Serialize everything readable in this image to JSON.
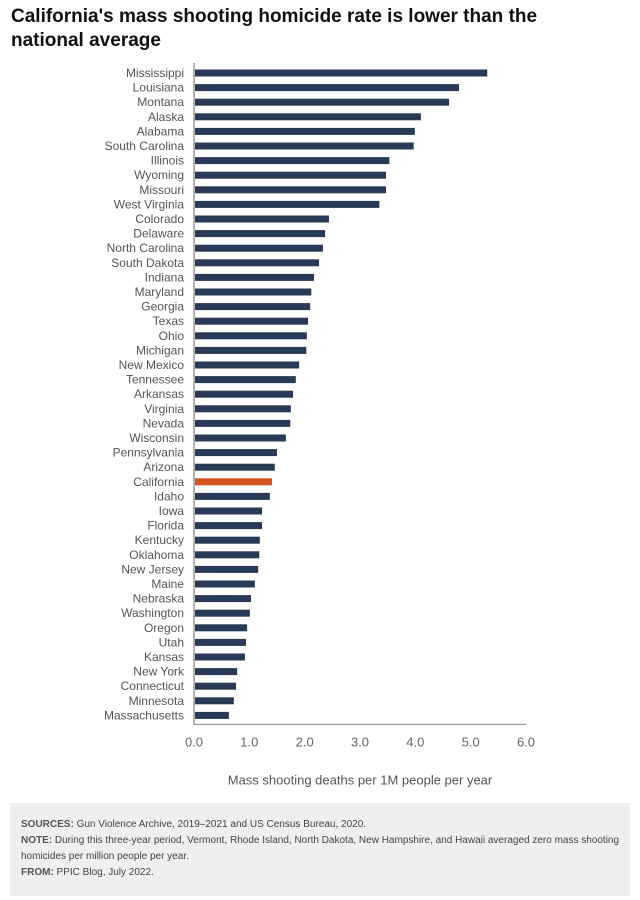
{
  "chart_data": {
    "type": "bar",
    "orientation": "horizontal",
    "title": "California's mass shooting homicide rate is lower than the national average",
    "xlabel": "Mass shooting deaths per 1M people per year",
    "ylabel": "",
    "xlim": [
      0,
      6
    ],
    "xticks": [
      0,
      1,
      2,
      3,
      4,
      5,
      6
    ],
    "xtick_labels": [
      "0.0",
      "1.0",
      "2.0",
      "3.0",
      "4.0",
      "5.0",
      "6.0"
    ],
    "grid": false,
    "highlight": "California",
    "colors": {
      "default": "#283a55",
      "highlight": "#d4551f",
      "axis": "#666666"
    },
    "categories": [
      "Mississippi",
      "Louisiana",
      "Montana",
      "Alaska",
      "Alabama",
      "South Carolina",
      "Illinois",
      "Wyoming",
      "Missouri",
      "West Virginia",
      "Colorado",
      "Delaware",
      "North Carolina",
      "South Dakota",
      "Indiana",
      "Maryland",
      "Georgia",
      "Texas",
      "Ohio",
      "Michigan",
      "New Mexico",
      "Tennessee",
      "Arkansas",
      "Virginia",
      "Nevada",
      "Wisconsin",
      "Pennsylvania",
      "Arizona",
      "California",
      "Idaho",
      "Iowa",
      "Florida",
      "Kentucky",
      "Oklahoma",
      "New Jersey",
      "Maine",
      "Nebraska",
      "Washington",
      "Oregon",
      "Utah",
      "Kansas",
      "New York",
      "Connecticut",
      "Minnesota",
      "Massachusetts"
    ],
    "values": [
      5.3,
      4.79,
      4.61,
      4.1,
      3.99,
      3.97,
      3.53,
      3.47,
      3.47,
      3.35,
      2.44,
      2.37,
      2.33,
      2.26,
      2.17,
      2.12,
      2.1,
      2.06,
      2.04,
      2.03,
      1.9,
      1.84,
      1.79,
      1.75,
      1.74,
      1.66,
      1.5,
      1.46,
      1.41,
      1.37,
      1.23,
      1.23,
      1.19,
      1.18,
      1.16,
      1.1,
      1.03,
      1.01,
      0.96,
      0.94,
      0.92,
      0.78,
      0.76,
      0.72,
      0.63
    ]
  },
  "footer": {
    "sources_label": "SOURCES:",
    "sources_text": " Gun Violence Archive, 2019–2021 and US Census Bureau, 2020.",
    "note_label": "NOTE:",
    "note_text": " During this three-year period, Vermont, Rhode Island, North Dakota, New Hampshire, and Hawaii averaged zero mass shooting homicides per million people per year.",
    "from_label": "FROM:",
    "from_text": " PPIC Blog, July 2022."
  }
}
